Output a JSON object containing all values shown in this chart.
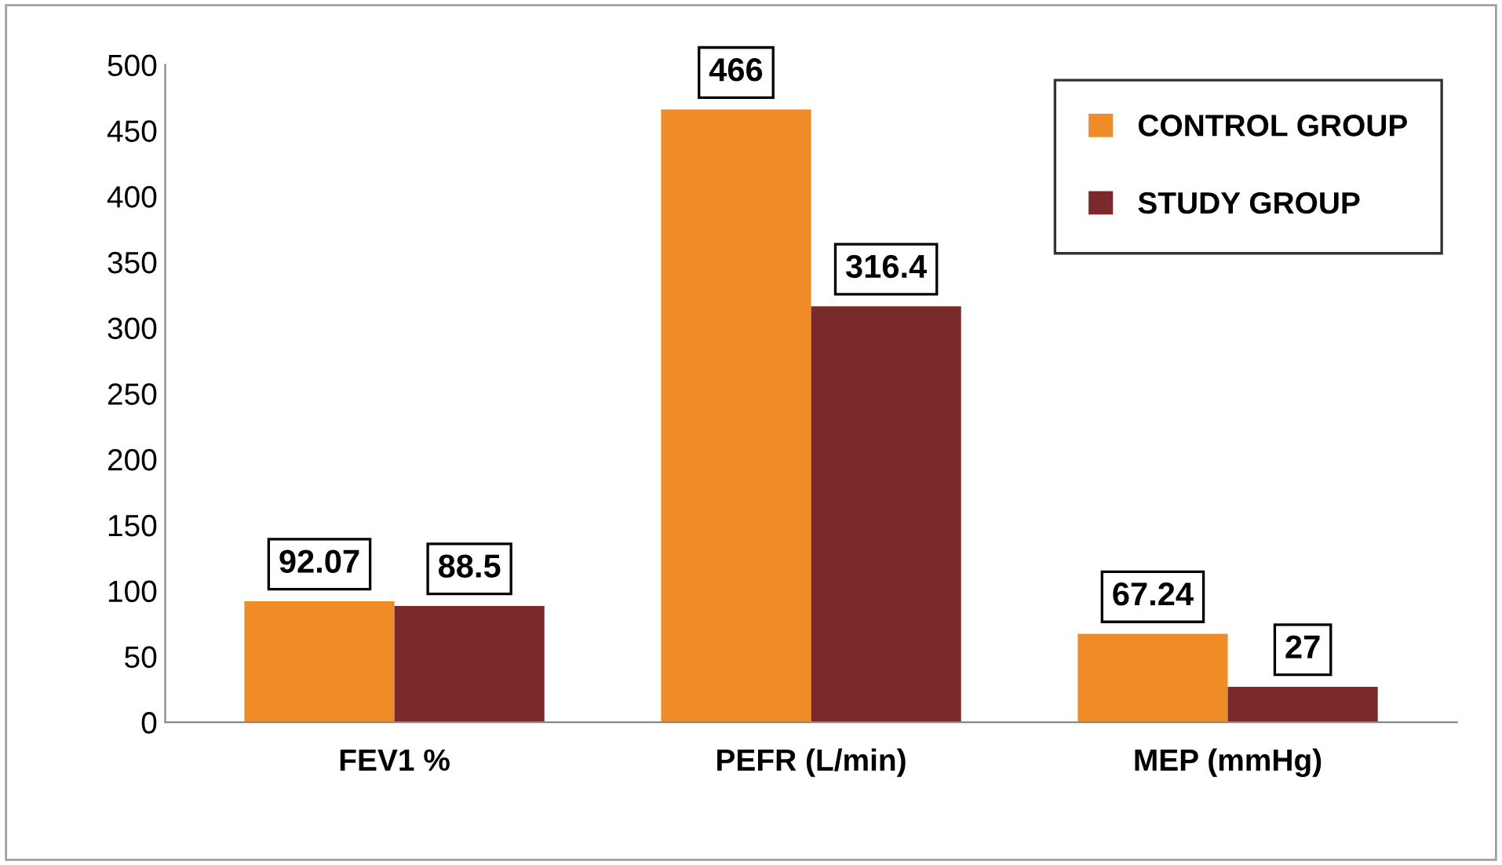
{
  "chart_data": {
    "type": "bar",
    "categories": [
      "FEV1 %",
      "PEFR (L/min)",
      "MEP (mmHg)"
    ],
    "series": [
      {
        "name": "CONTROL GROUP",
        "color": "#f08c28",
        "values": [
          92.07,
          466,
          67.24
        ]
      },
      {
        "name": "STUDY GROUP",
        "color": "#7a2a2a",
        "values": [
          88.5,
          316.4,
          27
        ]
      }
    ],
    "ylim": [
      0,
      500
    ],
    "yticks": [
      0,
      50,
      100,
      150,
      200,
      250,
      300,
      350,
      400,
      450,
      500
    ],
    "grid": false,
    "legend": "top right",
    "data_labels": true
  }
}
